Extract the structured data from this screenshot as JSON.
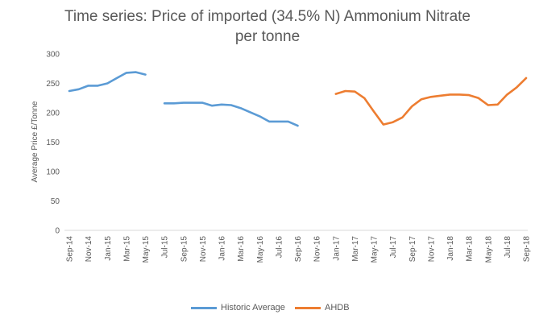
{
  "chart_data": {
    "type": "line",
    "title": "Time series: Price of imported (34.5% N) Ammonium Nitrate",
    "title_line2": "per tonne",
    "ylabel": "Average Price  £/Tonne",
    "xlabel": "",
    "ylim": [
      0,
      300
    ],
    "yticks": [
      0,
      50,
      100,
      150,
      200,
      250,
      300
    ],
    "grid": false,
    "legend_position": "bottom",
    "categories": [
      "Sep-14",
      "Oct-14",
      "Nov-14",
      "Dec-14",
      "Jan-15",
      "Feb-15",
      "Mar-15",
      "Apr-15",
      "May-15",
      "Jun-15",
      "Jul-15",
      "Aug-15",
      "Sep-15",
      "Oct-15",
      "Nov-15",
      "Dec-15",
      "Jan-16",
      "Feb-16",
      "Mar-16",
      "Apr-16",
      "May-16",
      "Jun-16",
      "Jul-16",
      "Aug-16",
      "Sep-16",
      "Oct-16",
      "Nov-16",
      "Dec-16",
      "Jan-17",
      "Feb-17",
      "Mar-17",
      "Apr-17",
      "May-17",
      "Jun-17",
      "Jul-17",
      "Aug-17",
      "Sep-17",
      "Oct-17",
      "Nov-17",
      "Dec-17",
      "Jan-18",
      "Feb-18",
      "Mar-18",
      "Apr-18",
      "May-18",
      "Jun-18",
      "Jul-18",
      "Aug-18",
      "Sep-18"
    ],
    "tick_labels": [
      "Sep-14",
      "Nov-14",
      "Jan-15",
      "Mar-15",
      "May-15",
      "Jul-15",
      "Sep-15",
      "Nov-15",
      "Jan-16",
      "Mar-16",
      "May-16",
      "Jul-16",
      "Sep-16",
      "Nov-16",
      "Jan-17",
      "Mar-17",
      "May-17",
      "Jul-17",
      "Sep-17",
      "Nov-17",
      "Jan-18",
      "Mar-18",
      "May-18",
      "Jul-18",
      "Sep-18"
    ],
    "series": [
      {
        "name": "Historic Average",
        "color": "#5b9bd5",
        "values": [
          237,
          240,
          246,
          246,
          250,
          259,
          268,
          269,
          265,
          null,
          216,
          216,
          217,
          217,
          217,
          212,
          214,
          213,
          208,
          201,
          194,
          185,
          185,
          185,
          178,
          null,
          null,
          null,
          null,
          null,
          null,
          null,
          null,
          null,
          null,
          null,
          null,
          null,
          null,
          null,
          null,
          null,
          null,
          null,
          null,
          null,
          null,
          null,
          null
        ]
      },
      {
        "name": "AHDB",
        "color": "#ed7d31",
        "values": [
          null,
          null,
          null,
          null,
          null,
          null,
          null,
          null,
          null,
          null,
          null,
          null,
          null,
          null,
          null,
          null,
          null,
          null,
          null,
          null,
          null,
          null,
          null,
          null,
          null,
          null,
          null,
          null,
          232,
          237,
          236,
          225,
          202,
          180,
          184,
          192,
          211,
          223,
          227,
          229,
          231,
          231,
          230,
          225,
          213,
          214,
          231,
          243,
          259
        ]
      }
    ]
  }
}
